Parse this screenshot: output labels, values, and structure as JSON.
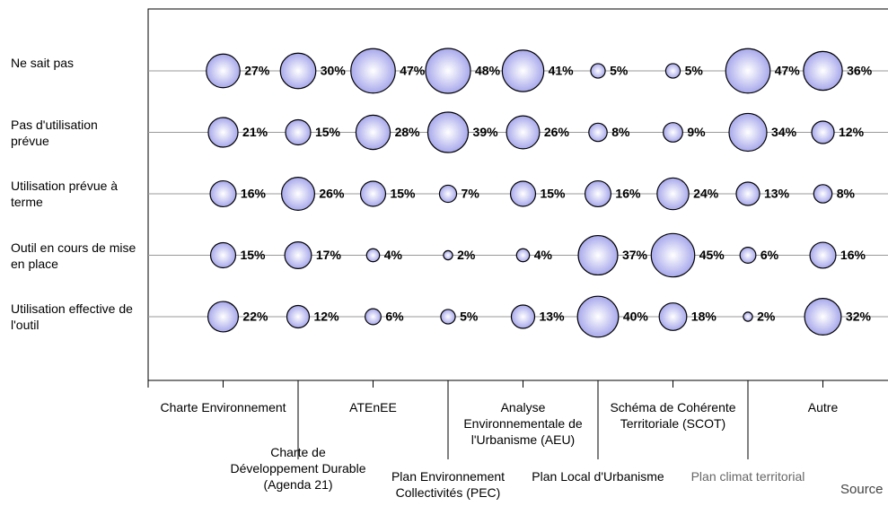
{
  "chart_data": {
    "type": "bubble",
    "categories": [
      "Charte Environnement",
      "Charte de Développement Durable (Agenda 21)",
      "ATEnEE",
      "Plan Environnement Collectivités (PEC)",
      "Analyse Environnementale de l'Urbanisme (AEU)",
      "Plan Local d'Urbanisme",
      "Schéma de Cohérente Territoriale (SCOT)",
      "Plan climat territorial",
      "Autre"
    ],
    "color": "#a8a8ec",
    "note": "Source",
    "series": [
      {
        "name": "Ne sait pas",
        "values": [
          27,
          30,
          47,
          48,
          41,
          5,
          5,
          47,
          36
        ],
        "value_labels": [
          "27%",
          "30%",
          "47%",
          "48%",
          "41%",
          "5%",
          "5%",
          "47%",
          "36%"
        ]
      },
      {
        "name": "Pas d'utilisation prévue",
        "values": [
          21,
          15,
          28,
          39,
          26,
          8,
          9,
          34,
          12
        ],
        "value_labels": [
          "21%",
          "15%",
          "28%",
          "39%",
          "26%",
          "8%",
          "9%",
          "34%",
          "12%"
        ]
      },
      {
        "name": "Utilisation prévue à terme",
        "values": [
          16,
          26,
          15,
          7,
          15,
          16,
          24,
          13,
          8
        ],
        "value_labels": [
          "16%",
          "26%",
          "15%",
          "7%",
          "15%",
          "16%",
          "24%",
          "13%",
          "8%"
        ]
      },
      {
        "name": "Outil en cours de mise en place",
        "values": [
          15,
          17,
          4,
          2,
          4,
          37,
          45,
          6,
          16
        ],
        "value_labels": [
          "15%",
          "17%",
          "4%",
          "2%",
          "4%",
          "37%",
          "45%",
          "6%",
          "16%"
        ]
      },
      {
        "name": "Utilisation effective de l'outil",
        "values": [
          22,
          12,
          6,
          5,
          13,
          40,
          18,
          2,
          32
        ],
        "value_labels": [
          "22%",
          "12%",
          "6%",
          "5%",
          "13%",
          "40%",
          "18%",
          "2%",
          "32%"
        ]
      }
    ]
  }
}
